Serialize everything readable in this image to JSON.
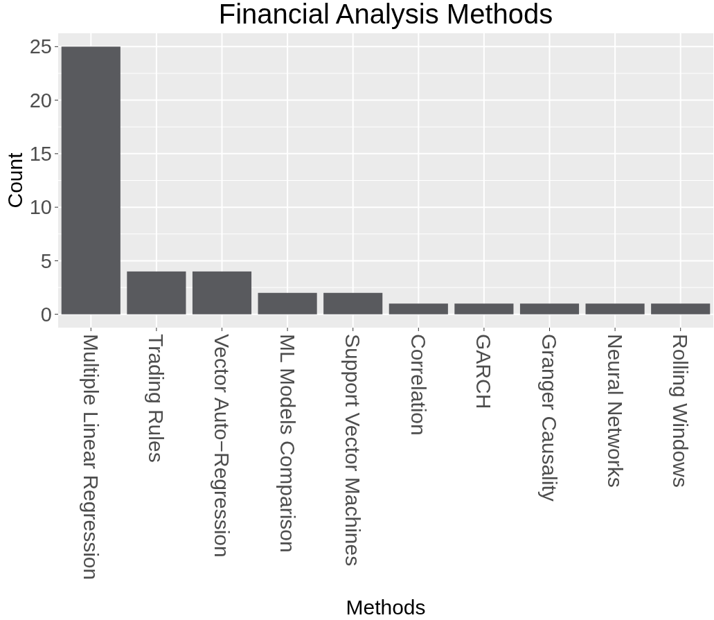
{
  "chart_data": {
    "type": "bar",
    "title": "Financial Analysis Methods",
    "xlabel": "Methods",
    "ylabel": "Count",
    "categories": [
      "Multiple Linear Regression",
      "Trading Rules",
      "Vector Auto−Regression",
      "ML Models Comparison",
      "Support Vector Machines",
      "Correlation",
      "GARCH",
      "Granger Causality",
      "Neural Networks",
      "Rolling Windows"
    ],
    "values": [
      25,
      4,
      4,
      2,
      2,
      1,
      1,
      1,
      1,
      1
    ],
    "color": "#595a5e",
    "ylim": [
      -1.25,
      26.25
    ],
    "yticks": [
      0,
      5,
      10,
      15,
      20,
      25
    ],
    "grid": true
  }
}
